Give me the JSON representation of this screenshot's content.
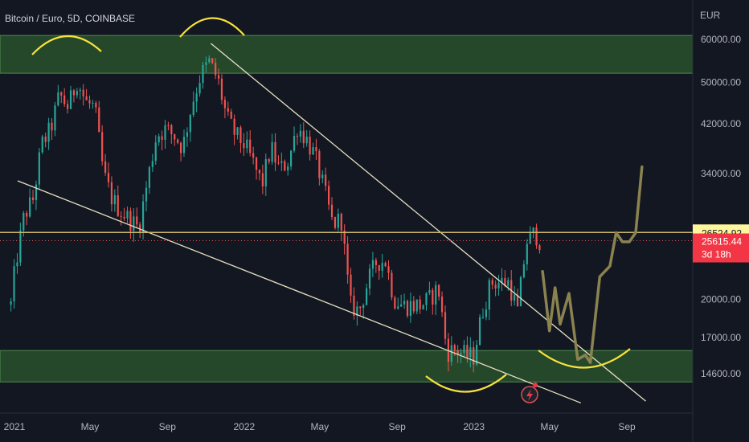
{
  "header": {
    "title": "Bitcoin / Euro, 5D, COINBASE",
    "currency": "EUR"
  },
  "price_axis": {
    "ticks": [
      "60000.00",
      "50000.00",
      "42000.00",
      "34000.00",
      "20000.00",
      "17000.00",
      "14600.00"
    ]
  },
  "time_axis": {
    "ticks": [
      "2021",
      "May",
      "Sep",
      "2022",
      "May",
      "Sep",
      "2023",
      "May",
      "Sep"
    ]
  },
  "labels": {
    "resistance_price": "26524.92",
    "last_price": "25615.44",
    "countdown": "3d 18h"
  },
  "colors": {
    "background": "#131722",
    "up": "#26a69a",
    "down": "#ef5350",
    "zone": "#2e5a2e",
    "trendline": "#e6e0c0",
    "horizontal_line": "#c8b86a",
    "arc": "#f5e23c",
    "projection": "#8a8350",
    "price_label_bg": "#fff59d",
    "last_price_bg": "#f23645"
  },
  "chart_data": {
    "type": "candlestick",
    "title": "Bitcoin / Euro, 5D, COINBASE",
    "y_unit": "EUR",
    "y_scale": "log",
    "y_range": [
      12800,
      70000
    ],
    "x_range": [
      "2020-12-25",
      "2023-11-20"
    ],
    "series": [
      {
        "name": "BTC/EUR",
        "type": "candlestick",
        "points": [
          {
            "x": "2021-01-01",
            "y": 23000
          },
          {
            "x": "2021-01-15",
            "y": 28500
          },
          {
            "x": "2021-01-29",
            "y": 30500
          },
          {
            "x": "2021-02-12",
            "y": 38500
          },
          {
            "x": "2021-02-26",
            "y": 41000
          },
          {
            "x": "2021-03-12",
            "y": 47500
          },
          {
            "x": "2021-03-26",
            "y": 45000
          },
          {
            "x": "2021-04-09",
            "y": 50500
          },
          {
            "x": "2021-04-23",
            "y": 46000
          },
          {
            "x": "2021-05-07",
            "y": 45000
          },
          {
            "x": "2021-05-21",
            "y": 34000
          },
          {
            "x": "2021-06-04",
            "y": 30500
          },
          {
            "x": "2021-06-18",
            "y": 29000
          },
          {
            "x": "2021-07-02",
            "y": 28000
          },
          {
            "x": "2021-07-16",
            "y": 27000
          },
          {
            "x": "2021-07-30",
            "y": 33000
          },
          {
            "x": "2021-08-13",
            "y": 40000
          },
          {
            "x": "2021-08-27",
            "y": 41000
          },
          {
            "x": "2021-09-10",
            "y": 40000
          },
          {
            "x": "2021-09-24",
            "y": 38000
          },
          {
            "x": "2021-10-08",
            "y": 45500
          },
          {
            "x": "2021-10-22",
            "y": 51500
          },
          {
            "x": "2021-11-05",
            "y": 54500
          },
          {
            "x": "2021-11-19",
            "y": 50500
          },
          {
            "x": "2021-12-03",
            "y": 43000
          },
          {
            "x": "2021-12-17",
            "y": 40000
          },
          {
            "x": "2021-12-31",
            "y": 38500
          },
          {
            "x": "2022-01-14",
            "y": 35500
          },
          {
            "x": "2022-01-28",
            "y": 32500
          },
          {
            "x": "2022-02-11",
            "y": 38000
          },
          {
            "x": "2022-02-25",
            "y": 34500
          },
          {
            "x": "2022-03-11",
            "y": 36000
          },
          {
            "x": "2022-03-25",
            "y": 41500
          },
          {
            "x": "2022-04-08",
            "y": 39500
          },
          {
            "x": "2022-04-22",
            "y": 36500
          },
          {
            "x": "2022-05-06",
            "y": 32000
          },
          {
            "x": "2022-05-20",
            "y": 27500
          },
          {
            "x": "2022-06-03",
            "y": 28000
          },
          {
            "x": "2022-06-17",
            "y": 19500
          },
          {
            "x": "2022-07-01",
            "y": 19000
          },
          {
            "x": "2022-07-15",
            "y": 21500
          },
          {
            "x": "2022-07-29",
            "y": 23500
          },
          {
            "x": "2022-08-12",
            "y": 23500
          },
          {
            "x": "2022-08-26",
            "y": 20000
          },
          {
            "x": "2022-09-09",
            "y": 19500
          },
          {
            "x": "2022-09-23",
            "y": 19500
          },
          {
            "x": "2022-10-07",
            "y": 19500
          },
          {
            "x": "2022-10-21",
            "y": 20000
          },
          {
            "x": "2022-11-04",
            "y": 21000
          },
          {
            "x": "2022-11-18",
            "y": 16000
          },
          {
            "x": "2022-12-02",
            "y": 16200
          },
          {
            "x": "2022-12-16",
            "y": 15800
          },
          {
            "x": "2022-12-30",
            "y": 15700
          },
          {
            "x": "2023-01-13",
            "y": 19000
          },
          {
            "x": "2023-01-27",
            "y": 21500
          },
          {
            "x": "2023-02-10",
            "y": 21500
          },
          {
            "x": "2023-02-24",
            "y": 21500
          },
          {
            "x": "2023-03-10",
            "y": 19000
          },
          {
            "x": "2023-03-24",
            "y": 25500
          },
          {
            "x": "2023-04-07",
            "y": 26500
          },
          {
            "x": "2023-04-14",
            "y": 25615
          }
        ]
      }
    ],
    "horizontal_lines": [
      {
        "y": 26524.92,
        "label": "26524.92"
      },
      {
        "y": 25615.44,
        "label": "25615.44",
        "style": "dotted"
      }
    ],
    "zones": [
      {
        "y_low": 52000,
        "y_high": 61000
      },
      {
        "y_low": 14100,
        "y_high": 16100
      }
    ],
    "trendlines": [
      {
        "from": {
          "x": "2021-11-09",
          "y": 59000
        },
        "to": {
          "x": "2023-10-01",
          "y": 13000
        }
      },
      {
        "from": {
          "x": "2021-01-06",
          "y": 33000
        },
        "to": {
          "x": "2023-06-20",
          "y": 12900
        }
      }
    ],
    "projection": [
      {
        "x": "2023-04-20",
        "y": 22500
      },
      {
        "x": "2023-05-01",
        "y": 17500
      },
      {
        "x": "2023-05-10",
        "y": 21000
      },
      {
        "x": "2023-05-18",
        "y": 18000
      },
      {
        "x": "2023-06-01",
        "y": 20500
      },
      {
        "x": "2023-06-15",
        "y": 15500
      },
      {
        "x": "2023-06-27",
        "y": 15800
      },
      {
        "x": "2023-07-05",
        "y": 15300
      },
      {
        "x": "2023-07-20",
        "y": 22000
      },
      {
        "x": "2023-08-05",
        "y": 23000
      },
      {
        "x": "2023-08-15",
        "y": 26500
      },
      {
        "x": "2023-08-25",
        "y": 25500
      },
      {
        "x": "2023-09-05",
        "y": 25500
      },
      {
        "x": "2023-09-15",
        "y": 26500
      },
      {
        "x": "2023-09-25",
        "y": 35000
      }
    ],
    "x_ticks": [
      {
        "x": "2021-01-01",
        "label": "2021"
      },
      {
        "x": "2021-05-01",
        "label": "May"
      },
      {
        "x": "2021-09-01",
        "label": "Sep"
      },
      {
        "x": "2022-01-01",
        "label": "2022"
      },
      {
        "x": "2022-05-01",
        "label": "May"
      },
      {
        "x": "2022-09-01",
        "label": "Sep"
      },
      {
        "x": "2023-01-01",
        "label": "2023"
      },
      {
        "x": "2023-05-01",
        "label": "May"
      },
      {
        "x": "2023-09-01",
        "label": "Sep"
      }
    ],
    "y_ticks": [
      60000,
      50000,
      42000,
      34000,
      20000,
      17000,
      14600
    ],
    "grid": false
  }
}
